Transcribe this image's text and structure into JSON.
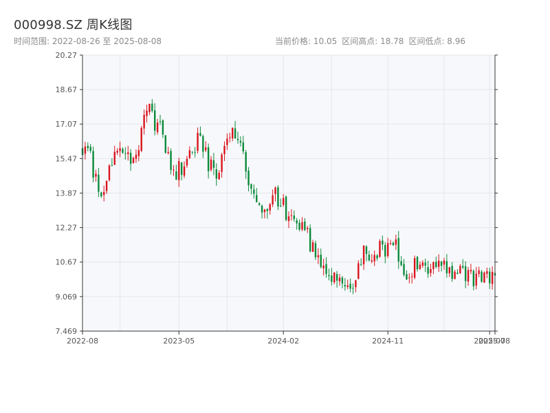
{
  "header": {
    "title": "000998.SZ 周K线图",
    "range_text": "时间范围: 2022-08-26 至 2025-08-08",
    "current_price_text": "当前价格: 10.05",
    "high_text": "区间高点: 18.78",
    "low_text": "区间低点: 8.96"
  },
  "colors": {
    "up": "#d9141d",
    "down": "#0a8a3a",
    "plot_bg": "#f7f8fb",
    "grid": "#e4e6ea",
    "axis": "#333333"
  },
  "chart_data": {
    "type": "candlestick",
    "title": "000998.SZ 周K线图",
    "xlabel": "",
    "ylabel": "",
    "ylim": [
      7.469,
      20.27
    ],
    "xlim": [
      "2022-08-26",
      "2025-08-08"
    ],
    "y_ticks": [
      "7.469",
      "9.069",
      "10.67",
      "12.27",
      "13.87",
      "15.47",
      "17.07",
      "18.67",
      "20.27"
    ],
    "x_ticks": [
      {
        "date": "2022-08-26",
        "label": "2022-08"
      },
      {
        "date": "2023-05-05",
        "label": "2023-05"
      },
      {
        "date": "2024-02-02",
        "label": "2024-02"
      },
      {
        "date": "2024-11-01",
        "label": "2024-11"
      },
      {
        "date": "2025-07-25",
        "label": "2025-07"
      },
      {
        "date": "2025-08-08",
        "label": "2025-08"
      }
    ],
    "grid": true,
    "trend_anchors": [
      [
        "2022-08-26",
        15.9
      ],
      [
        "2022-09-16",
        15.4
      ],
      [
        "2022-10-07",
        14.3
      ],
      [
        "2022-10-21",
        13.9
      ],
      [
        "2022-11-04",
        15.2
      ],
      [
        "2022-11-25",
        15.6
      ],
      [
        "2022-12-16",
        16.1
      ],
      [
        "2023-01-06",
        15.2
      ],
      [
        "2023-01-27",
        16.7
      ],
      [
        "2023-02-10",
        18.1
      ],
      [
        "2023-02-24",
        17.3
      ],
      [
        "2023-03-17",
        16.8
      ],
      [
        "2023-04-07",
        15.6
      ],
      [
        "2023-04-28",
        14.8
      ],
      [
        "2023-05-19",
        15.2
      ],
      [
        "2023-06-02",
        15.5
      ],
      [
        "2023-06-23",
        16.3
      ],
      [
        "2023-07-07",
        16.0
      ],
      [
        "2023-07-28",
        15.0
      ],
      [
        "2023-08-11",
        14.7
      ],
      [
        "2023-08-25",
        15.4
      ],
      [
        "2023-09-08",
        16.4
      ],
      [
        "2023-09-29",
        16.7
      ],
      [
        "2023-10-20",
        16.2
      ],
      [
        "2023-11-03",
        14.0
      ],
      [
        "2023-11-24",
        13.5
      ],
      [
        "2023-12-15",
        12.8
      ],
      [
        "2024-01-05",
        13.8
      ],
      [
        "2024-01-26",
        13.5
      ],
      [
        "2024-02-16",
        12.7
      ],
      [
        "2024-03-08",
        12.3
      ],
      [
        "2024-03-29",
        12.4
      ],
      [
        "2024-04-19",
        11.2
      ],
      [
        "2024-05-10",
        10.4
      ],
      [
        "2024-05-31",
        10.1
      ],
      [
        "2024-06-21",
        10.0
      ],
      [
        "2024-07-12",
        9.5
      ],
      [
        "2024-08-02",
        9.5
      ],
      [
        "2024-08-16",
        10.6
      ],
      [
        "2024-08-30",
        11.4
      ],
      [
        "2024-09-20",
        10.8
      ],
      [
        "2024-10-11",
        11.5
      ],
      [
        "2024-11-01",
        11.2
      ],
      [
        "2024-11-22",
        11.3
      ],
      [
        "2024-12-13",
        10.2
      ],
      [
        "2025-01-03",
        10.4
      ],
      [
        "2025-01-24",
        10.8
      ],
      [
        "2025-02-14",
        10.3
      ],
      [
        "2025-03-07",
        10.8
      ],
      [
        "2025-03-21",
        10.7
      ],
      [
        "2025-04-11",
        10.2
      ],
      [
        "2025-05-02",
        10.2
      ],
      [
        "2025-05-23",
        10.1
      ],
      [
        "2025-06-13",
        9.9
      ],
      [
        "2025-07-04",
        9.9
      ],
      [
        "2025-07-25",
        10.0
      ],
      [
        "2025-08-08",
        10.05
      ]
    ]
  }
}
